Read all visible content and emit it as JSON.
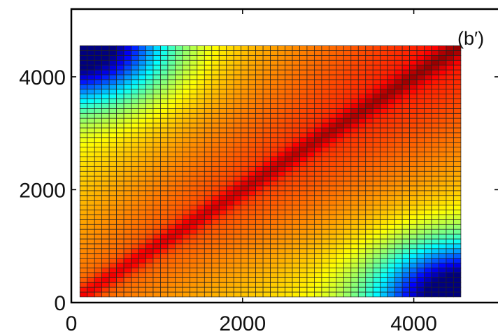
{
  "chart_data": {
    "type": "heatmap",
    "panel_label": "(b′)",
    "title": "",
    "xlabel": "",
    "ylabel": "",
    "x_range": [
      0,
      5000
    ],
    "y_range": [
      0,
      5200
    ],
    "grid": false,
    "x_ticks": [
      {
        "value": 0,
        "label": "0"
      },
      {
        "value": 2000,
        "label": "2000"
      },
      {
        "value": 4000,
        "label": "4000"
      }
    ],
    "y_ticks": [
      {
        "value": 0,
        "label": "0"
      },
      {
        "value": 2000,
        "label": "2000"
      },
      {
        "value": 4000,
        "label": "4000"
      }
    ],
    "cell_extent": {
      "x": [
        100,
        4550
      ],
      "y": [
        100,
        4550
      ]
    },
    "grid_size": 52,
    "colormap": [
      "#00007f",
      "#0000ff",
      "#007fff",
      "#00ffff",
      "#7fff7f",
      "#ffff00",
      "#ff7f00",
      "#ff0000",
      "#7f0000"
    ],
    "cell_border_color": "#222222",
    "frame_color": "#000000",
    "background_color": "#ffffff"
  }
}
